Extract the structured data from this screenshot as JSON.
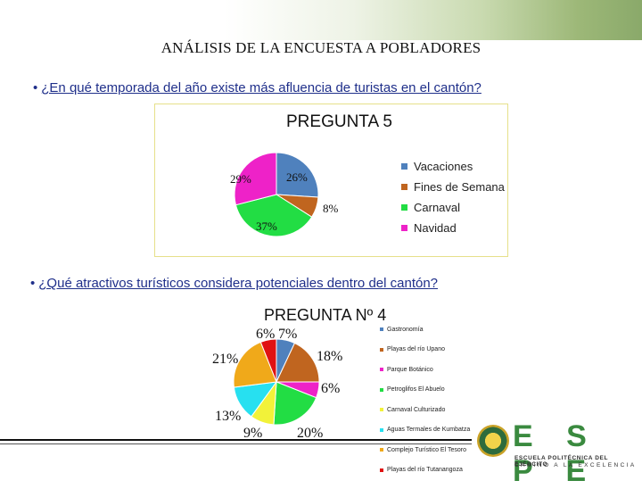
{
  "page": {
    "main_title": "ANÁLISIS DE LA ENCUESTA A POBLADORES",
    "question1": "¿En qué temporada del año existe más afluencia de turistas en el cantón?",
    "question2": "¿Qué atractivos turísticos considera potenciales dentro del cantón?",
    "logo": {
      "letters": "E S P E",
      "line1": "ESCUELA POLITÉCNICA DEL EJÉRCITO",
      "line2": "CAMINO A LA EXCELENCIA"
    }
  },
  "chart_data": [
    {
      "type": "pie",
      "title": "PREGUNTA 5",
      "labels": [
        "Vacaciones",
        "Fines de Semana",
        "Carnaval",
        "Navidad"
      ],
      "values": [
        26,
        8,
        37,
        29
      ],
      "value_labels": [
        "26%",
        "8%",
        "37%",
        "29%"
      ],
      "colors": [
        "#4f81bd",
        "#c0651f",
        "#22dd44",
        "#ee22c8"
      ],
      "legend": "right"
    },
    {
      "type": "pie",
      "title": "PREGUNTA Nº 4",
      "labels": [
        "Gastronomía",
        "Playas del río Upano",
        "Parque Botánico",
        "Petroglifos El Abuelo",
        "Carnaval Culturizado",
        "Aguas Termales de Kumbatza",
        "Complejo Turístico El Tesoro",
        "Playas del río Tutanangoza"
      ],
      "values": [
        7,
        18,
        6,
        20,
        9,
        13,
        21,
        6
      ],
      "value_labels": [
        "7%",
        "18%",
        "6%",
        "20%",
        "9%",
        "13%",
        "21%",
        "6%"
      ],
      "colors": [
        "#4f81bd",
        "#c0651f",
        "#ee22c8",
        "#22dd44",
        "#f2f239",
        "#27e0f0",
        "#f0a91a",
        "#e01212"
      ],
      "legend": "right"
    }
  ]
}
